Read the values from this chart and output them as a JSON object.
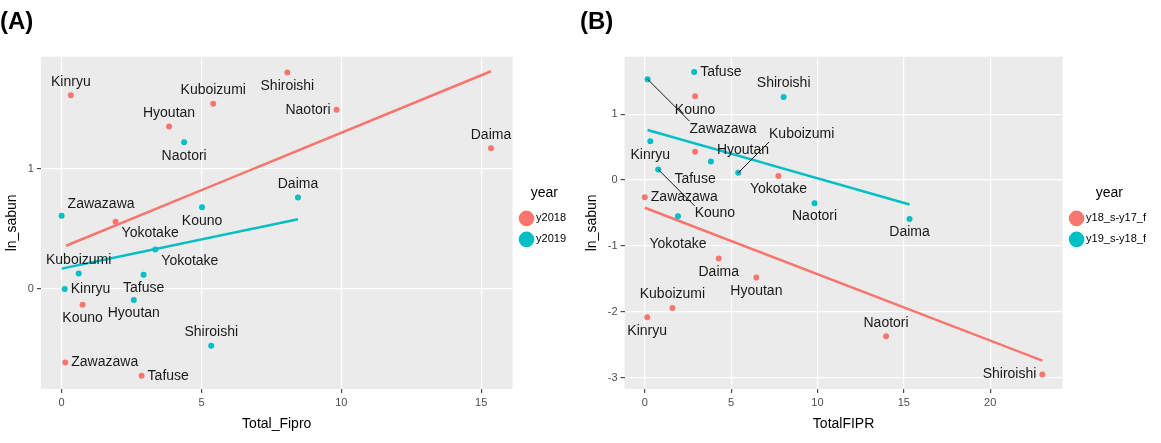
{
  "chart_data": [
    {
      "type": "scatter",
      "title": "(A)",
      "xlabel": "Total_Fipro",
      "ylabel": "ln_sabun",
      "legend_title": "year",
      "legend": "right",
      "grid": true,
      "marker": "circle",
      "xlim": [
        -0.74,
        16.12
      ],
      "ylim": [
        -0.83,
        1.93
      ],
      "xticks": [
        0,
        5,
        10,
        15
      ],
      "yticks": [
        0,
        1
      ],
      "series": [
        {
          "name": "y2018",
          "color": "#f8766d",
          "x": [
            8.07,
            0.33,
            5.42,
            9.83,
            3.84,
            15.35,
            1.93,
            0.75,
            0.13,
            2.86
          ],
          "values": [
            1.8,
            1.61,
            1.54,
            1.49,
            1.35,
            1.17,
            0.56,
            -0.13,
            -0.61,
            -0.72
          ]
        },
        {
          "name": "y2019",
          "color": "#00bfc4",
          "x": [
            4.38,
            8.45,
            5.02,
            0,
            3.35,
            0.61,
            2.93,
            0.11,
            2.58,
            5.35
          ],
          "values": [
            1.22,
            0.76,
            0.68,
            0.61,
            0.33,
            0.13,
            0.12,
            0,
            -0.09,
            -0.47
          ]
        },
        {
          "type": "line",
          "marker": "none",
          "color": "#f8766d",
          "x": [
            0.16,
            15.35
          ],
          "values": [
            0.36,
            1.81
          ]
        },
        {
          "type": "line",
          "marker": "none",
          "color": "#00bfc4",
          "x": [
            0,
            8.45
          ],
          "values": [
            0.17,
            0.58
          ]
        }
      ],
      "annotations": [
        {
          "text": "Shiroishi",
          "x": 8.07,
          "y": 1.8
        },
        {
          "text": "Kinryu",
          "x": 0.33,
          "y": 1.61
        },
        {
          "text": "Kuboizumi",
          "x": 5.42,
          "y": 1.54
        },
        {
          "text": "Naotori",
          "x": 9.83,
          "y": 1.49
        },
        {
          "text": "Hyoutan",
          "x": 3.84,
          "y": 1.35
        },
        {
          "text": "Daima",
          "x": 15.35,
          "y": 1.17
        },
        {
          "text": "Yokotake",
          "x": 1.93,
          "y": 0.56
        },
        {
          "text": "Kouno",
          "x": 0.75,
          "y": -0.13
        },
        {
          "text": "Zawazawa",
          "x": 0.13,
          "y": -0.61
        },
        {
          "text": "Tafuse",
          "x": 2.86,
          "y": -0.72
        },
        {
          "text": "Naotori",
          "x": 4.38,
          "y": 1.22
        },
        {
          "text": "Daima",
          "x": 8.45,
          "y": 0.76
        },
        {
          "text": "Kouno",
          "x": 5.02,
          "y": 0.68
        },
        {
          "text": "Zawazawa",
          "x": 0,
          "y": 0.61
        },
        {
          "text": "Yokotake",
          "x": 3.35,
          "y": 0.33
        },
        {
          "text": "Kuboizumi",
          "x": 0.61,
          "y": 0.13
        },
        {
          "text": "Tafuse",
          "x": 2.93,
          "y": 0.12
        },
        {
          "text": "Kinryu",
          "x": 0.11,
          "y": 0
        },
        {
          "text": "Hyoutan",
          "x": 2.58,
          "y": -0.09
        },
        {
          "text": "Shiroishi",
          "x": 5.35,
          "y": -0.47
        }
      ]
    },
    {
      "type": "scatter",
      "title": "(B)",
      "xlabel": "TotalFIPR",
      "ylabel": "ln_sabun",
      "legend_title": "year",
      "legend": "right",
      "grid": true,
      "marker": "circle",
      "xlim": [
        -1.17,
        24.19
      ],
      "ylim": [
        -3.17,
        1.87
      ],
      "xticks": [
        0,
        5,
        10,
        15,
        20
      ],
      "yticks": [
        -3,
        -2,
        -1,
        0,
        1
      ],
      "series": [
        {
          "name": "y18_s-y17_f",
          "color": "#f8766d",
          "x": [
            2.91,
            2.91,
            7.74,
            0,
            4.28,
            6.46,
            1.6,
            0.14,
            13.97,
            23.02
          ],
          "values": [
            1.27,
            0.43,
            0.06,
            -0.26,
            -1.19,
            -1.48,
            -1.94,
            -2.08,
            -2.37,
            -2.95
          ]
        },
        {
          "name": "y19_s-y18_f",
          "color": "#00bfc4",
          "x": [
            2.86,
            0.16,
            8.04,
            0.32,
            3.83,
            0.78,
            5.41,
            9.83,
            1.92,
            15.33
          ],
          "values": [
            1.64,
            1.53,
            1.26,
            0.59,
            0.28,
            0.16,
            0.11,
            -0.35,
            -0.55,
            -0.59
          ]
        },
        {
          "type": "line",
          "marker": "none",
          "color": "#f8766d",
          "x": [
            0,
            23.02
          ],
          "values": [
            -0.42,
            -2.74
          ]
        },
        {
          "type": "line",
          "marker": "none",
          "color": "#00bfc4",
          "x": [
            0.16,
            15.33
          ],
          "values": [
            0.76,
            -0.37
          ]
        }
      ],
      "annotations": [
        {
          "text": "Kouno",
          "x": 2.91,
          "y": 1.27
        },
        {
          "text": "Tafuse",
          "x": 2.91,
          "y": 0.43
        },
        {
          "text": "Yokotake",
          "x": 7.74,
          "y": 0.06
        },
        {
          "text": "Zawazawa",
          "x": 0,
          "y": -0.26
        },
        {
          "text": "Daima",
          "x": 4.28,
          "y": -1.19
        },
        {
          "text": "Hyoutan",
          "x": 6.46,
          "y": -1.48
        },
        {
          "text": "Kuboizumi",
          "x": 1.6,
          "y": -1.94
        },
        {
          "text": "Kinryu",
          "x": 0.14,
          "y": -2.08
        },
        {
          "text": "Naotori",
          "x": 13.97,
          "y": -2.37
        },
        {
          "text": "Shiroishi",
          "x": 23.02,
          "y": -2.95
        },
        {
          "text": "Tafuse",
          "x": 2.86,
          "y": 1.64
        },
        {
          "text": "Zawazawa",
          "x": 0.16,
          "y": 1.53
        },
        {
          "text": "Shiroishi",
          "x": 8.04,
          "y": 1.26
        },
        {
          "text": "Kinryu",
          "x": 0.32,
          "y": 0.59
        },
        {
          "text": "Hyoutan",
          "x": 3.83,
          "y": 0.28
        },
        {
          "text": "Kouno",
          "x": 0.78,
          "y": 0.16
        },
        {
          "text": "Kuboizumi",
          "x": 5.41,
          "y": 0.11
        },
        {
          "text": "Naotori",
          "x": 9.83,
          "y": -0.35
        },
        {
          "text": "Yokotake",
          "x": 1.92,
          "y": -0.55
        },
        {
          "text": "Daima",
          "x": 15.33,
          "y": -0.59
        }
      ]
    }
  ]
}
